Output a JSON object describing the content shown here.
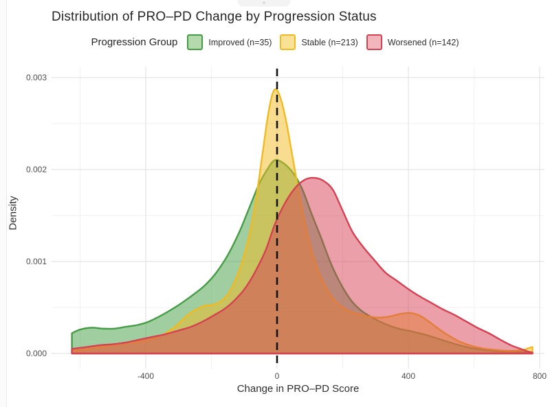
{
  "window": {
    "tab_fragment": ""
  },
  "title": "Distribution of PRO–PD Change by Progression Status",
  "legend": {
    "label": "Progression Group",
    "items": [
      {
        "label": "Improved (n=35)",
        "fill": "#b3d9ad",
        "border": "#449d44"
      },
      {
        "label": "Stable (n=213)",
        "fill": "#f9e296",
        "border": "#f1ba20"
      },
      {
        "label": "Worsened (n=142)",
        "fill": "#f0b6bc",
        "border": "#d54053"
      }
    ]
  },
  "chart_data": {
    "type": "area",
    "subtype": "density",
    "title": "Distribution of PRO–PD Change by Progression Status",
    "xlabel": "Change in PRO–PD Score",
    "ylabel": "Density",
    "xlim": [
      -687,
      815
    ],
    "ylim": [
      0,
      0.00312
    ],
    "grid": "on",
    "legend_position": "top",
    "reference_line": {
      "x": 0,
      "style": "dashed",
      "color": "#111111"
    },
    "x_ticks": [
      {
        "value": -400,
        "label": "-400"
      },
      {
        "value": 0,
        "label": "0"
      },
      {
        "value": 400,
        "label": "400"
      },
      {
        "value": 800,
        "label": "800"
      }
    ],
    "x_minor_ticks": [
      -600,
      -200,
      200,
      600
    ],
    "y_ticks": [
      {
        "value": 0.0,
        "label": "0.000"
      },
      {
        "value": 0.001,
        "label": "0.001"
      },
      {
        "value": 0.002,
        "label": "0.002"
      },
      {
        "value": 0.003,
        "label": "0.003"
      }
    ],
    "y_minor_ticks": [
      0.0005,
      0.0015,
      0.0025
    ],
    "density_unit": 0.001,
    "series": [
      {
        "name": "Improved (n=35)",
        "stroke": "#449d44",
        "fill_opacity": 0.5,
        "points": [
          [
            -625,
            0.22
          ],
          [
            -600,
            0.26
          ],
          [
            -565,
            0.28
          ],
          [
            -530,
            0.27
          ],
          [
            -495,
            0.27
          ],
          [
            -460,
            0.29
          ],
          [
            -425,
            0.31
          ],
          [
            -395,
            0.34
          ],
          [
            -360,
            0.4
          ],
          [
            -325,
            0.47
          ],
          [
            -290,
            0.55
          ],
          [
            -255,
            0.64
          ],
          [
            -220,
            0.74
          ],
          [
            -185,
            0.88
          ],
          [
            -150,
            1.07
          ],
          [
            -115,
            1.32
          ],
          [
            -85,
            1.58
          ],
          [
            -55,
            1.84
          ],
          [
            -30,
            2.0
          ],
          [
            -8,
            2.1
          ],
          [
            15,
            2.08
          ],
          [
            45,
            1.98
          ],
          [
            75,
            1.8
          ],
          [
            105,
            1.52
          ],
          [
            135,
            1.25
          ],
          [
            165,
            0.97
          ],
          [
            195,
            0.75
          ],
          [
            225,
            0.58
          ],
          [
            255,
            0.47
          ],
          [
            290,
            0.39
          ],
          [
            330,
            0.32
          ],
          [
            370,
            0.27
          ],
          [
            410,
            0.24
          ],
          [
            455,
            0.2
          ],
          [
            500,
            0.15
          ],
          [
            545,
            0.1
          ],
          [
            590,
            0.06
          ],
          [
            640,
            0.035
          ],
          [
            690,
            0.02
          ],
          [
            740,
            0.015
          ],
          [
            778,
            0.015
          ]
        ]
      },
      {
        "name": "Stable (n=213)",
        "stroke": "#f1ba20",
        "fill_opacity": 0.5,
        "points": [
          [
            -625,
            0.03
          ],
          [
            -580,
            0.05
          ],
          [
            -540,
            0.07
          ],
          [
            -500,
            0.09
          ],
          [
            -460,
            0.11
          ],
          [
            -420,
            0.13
          ],
          [
            -380,
            0.16
          ],
          [
            -345,
            0.21
          ],
          [
            -315,
            0.28
          ],
          [
            -290,
            0.36
          ],
          [
            -268,
            0.43
          ],
          [
            -245,
            0.48
          ],
          [
            -220,
            0.52
          ],
          [
            -195,
            0.53
          ],
          [
            -170,
            0.57
          ],
          [
            -145,
            0.67
          ],
          [
            -120,
            0.86
          ],
          [
            -98,
            1.1
          ],
          [
            -78,
            1.4
          ],
          [
            -60,
            1.78
          ],
          [
            -44,
            2.18
          ],
          [
            -28,
            2.58
          ],
          [
            -14,
            2.82
          ],
          [
            -2,
            2.87
          ],
          [
            12,
            2.76
          ],
          [
            28,
            2.52
          ],
          [
            48,
            2.12
          ],
          [
            70,
            1.68
          ],
          [
            92,
            1.3
          ],
          [
            115,
            1.0
          ],
          [
            140,
            0.78
          ],
          [
            168,
            0.61
          ],
          [
            200,
            0.5
          ],
          [
            235,
            0.44
          ],
          [
            270,
            0.41
          ],
          [
            305,
            0.39
          ],
          [
            340,
            0.4
          ],
          [
            375,
            0.43
          ],
          [
            405,
            0.44
          ],
          [
            435,
            0.41
          ],
          [
            465,
            0.34
          ],
          [
            495,
            0.26
          ],
          [
            525,
            0.19
          ],
          [
            555,
            0.13
          ],
          [
            590,
            0.085
          ],
          [
            625,
            0.055
          ],
          [
            660,
            0.04
          ],
          [
            695,
            0.03
          ],
          [
            725,
            0.03
          ],
          [
            750,
            0.04
          ],
          [
            768,
            0.06
          ],
          [
            778,
            0.07
          ]
        ]
      },
      {
        "name": "Worsened (n=142)",
        "stroke": "#d54053",
        "fill_opacity": 0.5,
        "points": [
          [
            -625,
            0.05
          ],
          [
            -580,
            0.07
          ],
          [
            -540,
            0.09
          ],
          [
            -500,
            0.1
          ],
          [
            -460,
            0.12
          ],
          [
            -420,
            0.15
          ],
          [
            -380,
            0.18
          ],
          [
            -340,
            0.21
          ],
          [
            -300,
            0.25
          ],
          [
            -262,
            0.29
          ],
          [
            -225,
            0.35
          ],
          [
            -190,
            0.42
          ],
          [
            -158,
            0.49
          ],
          [
            -126,
            0.59
          ],
          [
            -95,
            0.72
          ],
          [
            -65,
            0.9
          ],
          [
            -35,
            1.12
          ],
          [
            -5,
            1.42
          ],
          [
            25,
            1.64
          ],
          [
            55,
            1.8
          ],
          [
            85,
            1.89
          ],
          [
            112,
            1.91
          ],
          [
            140,
            1.88
          ],
          [
            170,
            1.78
          ],
          [
            200,
            1.55
          ],
          [
            230,
            1.32
          ],
          [
            262,
            1.16
          ],
          [
            295,
            1.02
          ],
          [
            330,
            0.88
          ],
          [
            365,
            0.79
          ],
          [
            400,
            0.7
          ],
          [
            435,
            0.62
          ],
          [
            470,
            0.55
          ],
          [
            505,
            0.48
          ],
          [
            540,
            0.42
          ],
          [
            575,
            0.35
          ],
          [
            610,
            0.28
          ],
          [
            645,
            0.22
          ],
          [
            680,
            0.15
          ],
          [
            712,
            0.09
          ],
          [
            742,
            0.05
          ],
          [
            765,
            0.02
          ],
          [
            778,
            0.01
          ]
        ]
      }
    ]
  }
}
